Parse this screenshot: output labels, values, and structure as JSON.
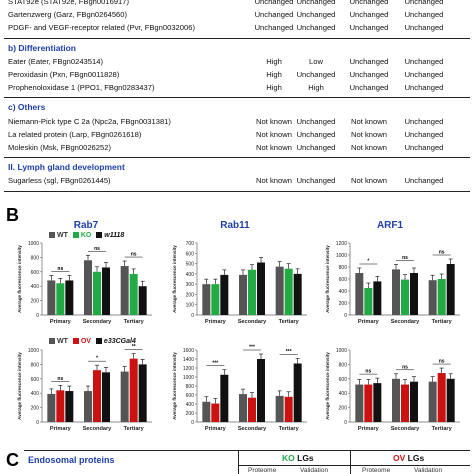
{
  "panelA": {
    "rows": [
      {
        "gene": "STAT92e (STAT92e, FBgn0016917)",
        "v": [
          "Unchanged",
          "Unchanged",
          "Unchanged",
          "Unchanged"
        ]
      },
      {
        "gene": "Gartenzwerg (Garz, FBgn0264560)",
        "v": [
          "Unchanged",
          "Unchanged",
          "Unchanged",
          "Unchanged"
        ]
      },
      {
        "gene": "PDGF- and VEGF-receptor related (Pvr, FBgn0032006)",
        "v": [
          "Unchanged",
          "Unchanged",
          "Unchanged",
          "Unchanged"
        ]
      }
    ],
    "sections": [
      {
        "title": "b) Differentiation",
        "rows": [
          {
            "gene": "Eater (Eater, FBgn0243514)",
            "v": [
              "High",
              "Low",
              "Unchanged",
              "Unchanged"
            ]
          },
          {
            "gene": "Peroxidasin (Pxn, FBgn0011828)",
            "v": [
              "High",
              "Unchanged",
              "Unchanged",
              "Unchanged"
            ]
          },
          {
            "gene": "Prophenoloxidase 1 (PPO1, FBgn0283437)",
            "v": [
              "High",
              "High",
              "Unchanged",
              "Unchanged"
            ]
          }
        ]
      },
      {
        "title": "c) Others",
        "rows": [
          {
            "gene": "Niemann-Pick type C 2a (Npc2a, FBgn0031381)",
            "v": [
              "Not known",
              "Unchanged",
              "Not known",
              "Unchanged"
            ]
          },
          {
            "gene": "La related protein (Larp, FBgn0261618)",
            "v": [
              "Not known",
              "Unchanged",
              "Not known",
              "Unchanged"
            ]
          },
          {
            "gene": "Moleskin (Msk, FBgn0026252)",
            "v": [
              "Not known",
              "Unchanged",
              "Not known",
              "Unchanged"
            ]
          }
        ]
      },
      {
        "title": "II. Lymph gland development",
        "rows": [
          {
            "gene": "Sugarless (sgl, FBgn0261445)",
            "v": [
              "Not known",
              "Unchanged",
              "Not known",
              "Unchanged"
            ]
          }
        ]
      }
    ]
  },
  "panelB": {
    "letter": "B",
    "titles": [
      "Rab7",
      "Rab11",
      "ARF1"
    ],
    "legend_top": [
      "WT",
      "KO",
      "w1118"
    ],
    "legend_bottom": [
      "WT",
      "OV",
      "e33CGal4"
    ],
    "ylabel": "Average fluorescence intensity",
    "colors": {
      "wt": "#555555",
      "ko": "#22aa44",
      "ctrl": "#111111",
      "ov": "#cc1111"
    }
  },
  "panelC": {
    "letter": "C",
    "title": "Endosomal proteins",
    "ko_label": "KO",
    "ov_label": "OV",
    "lgs": "LGs",
    "sub_a": "Proteome",
    "sub_b": "Validation"
  },
  "chart_data": [
    {
      "type": "bar",
      "title": "Rab7",
      "categories": [
        "Primary",
        "Secondary",
        "Tertiary"
      ],
      "ylim": [
        0,
        1000
      ],
      "yticks": [
        0,
        200,
        400,
        600,
        800,
        1000
      ],
      "series": [
        {
          "name": "WT",
          "values": [
            480,
            760,
            680
          ]
        },
        {
          "name": "KO",
          "values": [
            440,
            600,
            570
          ]
        },
        {
          "name": "w1118",
          "values": [
            480,
            660,
            400
          ]
        }
      ],
      "annotations": [
        "ns",
        "ns",
        "ns"
      ]
    },
    {
      "type": "bar",
      "title": "Rab11",
      "categories": [
        "Primary",
        "Secondary",
        "Tertiary"
      ],
      "ylim": [
        0,
        700
      ],
      "yticks": [
        0,
        100,
        200,
        300,
        400,
        500,
        600,
        700
      ],
      "series": [
        {
          "name": "WT",
          "values": [
            300,
            390,
            470
          ]
        },
        {
          "name": "KO",
          "values": [
            300,
            440,
            450
          ]
        },
        {
          "name": "w1118",
          "values": [
            390,
            510,
            400
          ]
        }
      ]
    },
    {
      "type": "bar",
      "title": "ARF1",
      "categories": [
        "Primary",
        "Secondary",
        "Tertiary"
      ],
      "ylim": [
        0,
        1200
      ],
      "yticks": [
        0,
        200,
        400,
        600,
        800,
        1000,
        1200
      ],
      "series": [
        {
          "name": "WT",
          "values": [
            700,
            760,
            580
          ]
        },
        {
          "name": "KO",
          "values": [
            450,
            590,
            600
          ]
        },
        {
          "name": "w1118",
          "values": [
            560,
            700,
            850
          ]
        }
      ],
      "annotations": [
        "*",
        "ns",
        "ns"
      ]
    },
    {
      "type": "bar",
      "categories": [
        "Primary",
        "Secondary",
        "Tertiary"
      ],
      "ylim": [
        0,
        1000
      ],
      "yticks": [
        0,
        200,
        400,
        600,
        800,
        1000
      ],
      "series": [
        {
          "name": "WT",
          "values": [
            390,
            430,
            700
          ]
        },
        {
          "name": "OV",
          "values": [
            440,
            720,
            880
          ]
        },
        {
          "name": "e33CGal4",
          "values": [
            430,
            690,
            800
          ]
        }
      ],
      "annotations": [
        "ns",
        "*",
        "**"
      ]
    },
    {
      "type": "bar",
      "categories": [
        "Primary",
        "Secondary",
        "Tertiary"
      ],
      "ylim": [
        0,
        1600
      ],
      "yticks": [
        0,
        200,
        400,
        600,
        800,
        1000,
        1200,
        1400,
        1600
      ],
      "series": [
        {
          "name": "WT",
          "values": [
            450,
            620,
            580
          ]
        },
        {
          "name": "OV",
          "values": [
            410,
            540,
            560
          ]
        },
        {
          "name": "e33CGal4",
          "values": [
            1050,
            1400,
            1300
          ]
        }
      ],
      "annotations": [
        "***",
        "***",
        "***"
      ]
    },
    {
      "type": "bar",
      "categories": [
        "Primary",
        "Secondary",
        "Tertiary"
      ],
      "ylim": [
        0,
        1000
      ],
      "yticks": [
        0,
        200,
        400,
        600,
        800,
        1000
      ],
      "series": [
        {
          "name": "WT",
          "values": [
            520,
            600,
            560
          ]
        },
        {
          "name": "OV",
          "values": [
            520,
            520,
            680
          ]
        },
        {
          "name": "e33CGal4",
          "values": [
            540,
            560,
            600
          ]
        }
      ],
      "annotations": [
        "ns",
        "ns",
        "ns"
      ]
    }
  ]
}
